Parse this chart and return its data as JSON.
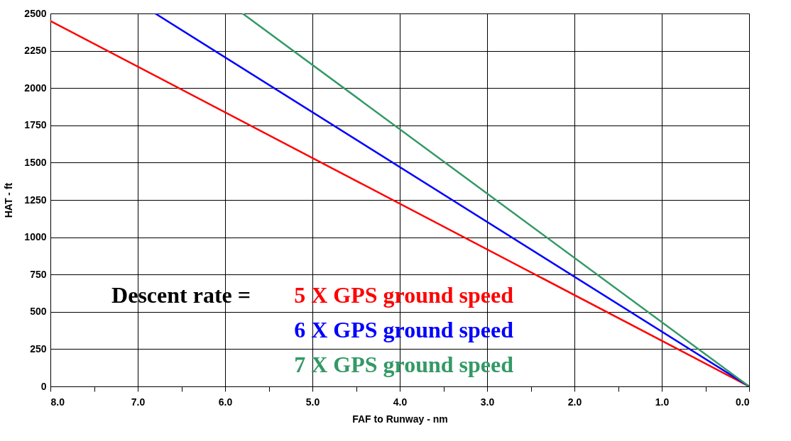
{
  "chart_data": {
    "type": "line",
    "xlabel": "FAF to Runway - nm",
    "ylabel": "HAT - ft",
    "annotations": [
      "Descent rate ="
    ],
    "series": [
      {
        "name": "5 X GPS ground speed",
        "color": "#ff0000",
        "x": [
          8.0,
          0.0
        ],
        "values": [
          2450,
          0
        ]
      },
      {
        "name": "6 X GPS ground speed",
        "color": "#0000ff",
        "x": [
          6.8,
          0.0
        ],
        "values": [
          2500,
          0
        ]
      },
      {
        "name": "7 X GPS ground speed",
        "color": "#339966",
        "x": [
          5.8,
          0.0
        ],
        "values": [
          2500,
          0
        ]
      }
    ],
    "xlim": [
      8.0,
      0.0
    ],
    "xticks": [
      {
        "value": 8,
        "label": "8.0"
      },
      {
        "value": 7.5,
        "label": null
      },
      {
        "value": 7,
        "label": "7.0"
      },
      {
        "value": 6.5,
        "label": null
      },
      {
        "value": 6,
        "label": "6.0"
      },
      {
        "value": 5.5,
        "label": null
      },
      {
        "value": 5,
        "label": "5.0"
      },
      {
        "value": 4.5,
        "label": null
      },
      {
        "value": 4,
        "label": "4.0"
      },
      {
        "value": 3.5,
        "label": null
      },
      {
        "value": 3,
        "label": "3.0"
      },
      {
        "value": 2.5,
        "label": null
      },
      {
        "value": 2,
        "label": "2.0"
      },
      {
        "value": 1.5,
        "label": null
      },
      {
        "value": 1,
        "label": "1.0"
      },
      {
        "value": 0.5,
        "label": null
      },
      {
        "value": 0,
        "label": "0.0"
      }
    ],
    "ylim": [
      0,
      2500
    ],
    "yticks": [
      0,
      250,
      500,
      750,
      1000,
      1250,
      1500,
      1750,
      2000,
      2250,
      2500
    ],
    "grid": true,
    "marker": "none",
    "line_style": "solid"
  }
}
